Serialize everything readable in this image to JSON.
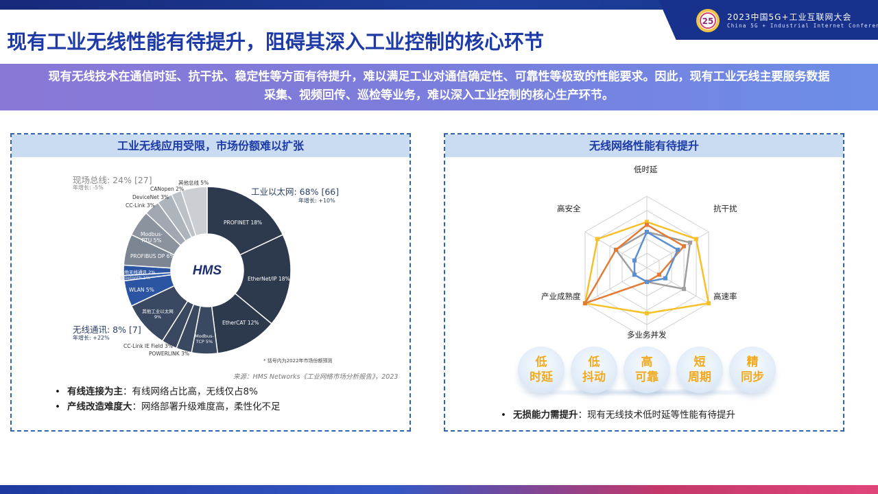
{
  "conference": {
    "logo_text": "25",
    "title": "2023中国5G+工业互联网大会",
    "subtitle": "China 5G + Industrial Internet Conference"
  },
  "page_title": "现有工业无线性能有待提升，阻碍其深入工业控制的核心环节",
  "banner": {
    "line1": "现有无线技术在通信时延、抗干扰、稳定性等方面有待提升，难以满足工业对通信确定性、可靠性等极致的性能要求。因此，现有工业无线主要服务数据",
    "line2": "采集、视频回传、巡检等业务，难以深入工业控制的核心生产环节。"
  },
  "left_panel": {
    "header": "工业无线应用受限，市场份额难以扩张",
    "center_logo": "HMS",
    "groups": {
      "ethernet": {
        "title": "工业以太网: 68% [66]",
        "growth": "年增长: +10%"
      },
      "fieldbus": {
        "title": "现场总线: 24% [27]",
        "growth": "年增长: -5%"
      },
      "wireless": {
        "title": "无线通讯: 8% [7]",
        "growth": "年增长: +22%"
      }
    },
    "segments": [
      {
        "label": "PROFINET 18%",
        "value": 18,
        "color": "#2d3a4e"
      },
      {
        "label": "EtherNet/IP 18%",
        "value": 18,
        "color": "#2d3a4e"
      },
      {
        "label": "EtherCAT 12%",
        "value": 12,
        "color": "#2d3a4e"
      },
      {
        "label": "Modbus-TCP 5%",
        "value": 5,
        "color": "#3a4862"
      },
      {
        "label": "POWERLINK 3%",
        "value": 3,
        "color": "#3a4862"
      },
      {
        "label": "CC-Link IE Field 3%",
        "value": 3,
        "color": "#3a4862"
      },
      {
        "label": "其他工业以太网 9%",
        "value": 9,
        "color": "#3a4862"
      },
      {
        "label": "WLAN 5%",
        "value": 5,
        "color": "#2b55a3"
      },
      {
        "label": "Bluetooth 1%",
        "value": 1,
        "color": "#3a63b0"
      },
      {
        "label": "其他无线通讯 2%",
        "value": 2,
        "color": "#2b55a3"
      },
      {
        "label": "PROFIBUS DP 6%",
        "value": 6,
        "color": "#7c8592"
      },
      {
        "label": "Modbus-RTU 5%",
        "value": 5,
        "color": "#8a939e"
      },
      {
        "label": "CC-Link 3%",
        "value": 3,
        "color": "#a1a8b1"
      },
      {
        "label": "DeviceNet 3%",
        "value": 3,
        "color": "#aeb4bb"
      },
      {
        "label": "CANopen 2%",
        "value": 2,
        "color": "#bcc1c7"
      },
      {
        "label": "其他总线 5%",
        "value": 5,
        "color": "#cbcfd4"
      }
    ],
    "footnote": "* 括号内为2022年市场份额预测",
    "source": "来源：HMS Networks《工业网络市场分析报告》，2023",
    "bullets": [
      {
        "bold": "有线连接为主",
        "text": "：有线网络占比高，无线仅占8%"
      },
      {
        "bold": "产线改造难度大",
        "text": "：网络部署升级难度高，柔性化不足"
      }
    ]
  },
  "right_panel": {
    "header": "无线网络性能有待提升",
    "axes": [
      "低时延",
      "抗干扰",
      "高速率",
      "多业务并发",
      "产业成熟度",
      "高安全"
    ],
    "bubbles": [
      {
        "l1": "低",
        "l2": "时延"
      },
      {
        "l1": "低",
        "l2": "抖动"
      },
      {
        "l1": "高",
        "l2": "可靠"
      },
      {
        "l1": "短",
        "l2": "周期"
      },
      {
        "l1": "精",
        "l2": "同步"
      }
    ],
    "bullet": {
      "bold": "无损能力需提升",
      "text": "：现有无线技术低时延等性能有待提升"
    }
  },
  "chart_data": [
    {
      "type": "pie",
      "title": "",
      "categories": [
        "PROFINET",
        "EtherNet/IP",
        "EtherCAT",
        "Modbus-TCP",
        "POWERLINK",
        "CC-Link IE Field",
        "其他工业以太网",
        "WLAN",
        "Bluetooth",
        "其他无线通讯",
        "PROFIBUS DP",
        "Modbus-RTU",
        "CC-Link",
        "DeviceNet",
        "CANopen",
        "其他总线"
      ],
      "values": [
        18,
        18,
        12,
        5,
        3,
        3,
        9,
        5,
        1,
        2,
        6,
        5,
        3,
        3,
        2,
        5
      ],
      "groups": [
        {
          "name": "工业以太网",
          "share": 68,
          "forecast": 66,
          "growth": "+10%"
        },
        {
          "name": "现场总线",
          "share": 24,
          "forecast": 27,
          "growth": "-5%"
        },
        {
          "name": "无线通讯",
          "share": 8,
          "forecast": 7,
          "growth": "+22%"
        }
      ]
    },
    {
      "type": "radar",
      "title": "",
      "categories": [
        "低时延",
        "抗干扰",
        "高速率",
        "多业务并发",
        "产业成熟度",
        "高安全"
      ],
      "range": [
        0,
        5
      ],
      "series": [
        {
          "color": "#f5c028",
          "values": [
            3.2,
            4,
            5,
            3.2,
            5,
            4
          ]
        },
        {
          "color": "#9e9e9e",
          "values": [
            2.5,
            3.5,
            3,
            1,
            1,
            2.5
          ]
        },
        {
          "color": "#e37b37",
          "values": [
            3,
            3,
            1,
            1,
            5,
            2.5
          ]
        },
        {
          "color": "#5b8fd0",
          "values": [
            2.5,
            2.5,
            1.5,
            1,
            1,
            1
          ]
        }
      ]
    }
  ]
}
